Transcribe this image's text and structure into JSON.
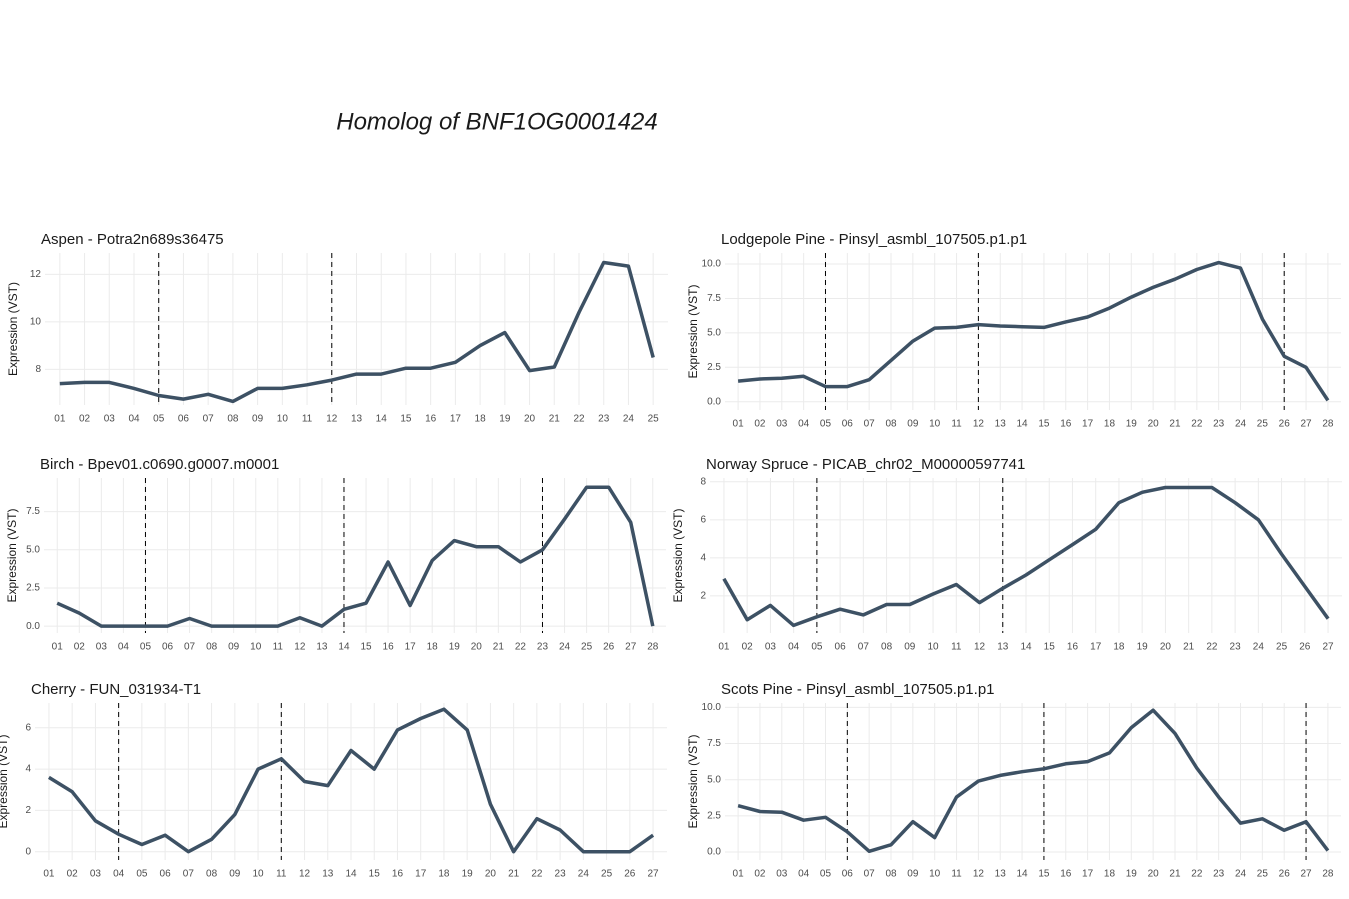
{
  "title": "Homolog of BNF1OG0001424",
  "chart_data": [
    {
      "type": "line",
      "title": "Aspen - Potra2n689s36475",
      "y_label": "Expression (VST)",
      "color": "#3d5164",
      "categories": [
        "01",
        "02",
        "03",
        "04",
        "05",
        "06",
        "07",
        "08",
        "09",
        "10",
        "11",
        "12",
        "13",
        "14",
        "15",
        "16",
        "17",
        "18",
        "19",
        "20",
        "21",
        "22",
        "23",
        "24",
        "25"
      ],
      "values": [
        7.4,
        7.45,
        7.45,
        7.2,
        6.9,
        6.75,
        6.95,
        6.65,
        7.2,
        7.2,
        7.35,
        7.55,
        7.8,
        7.8,
        8.05,
        8.05,
        8.3,
        9.0,
        9.55,
        7.95,
        8.1,
        10.4,
        12.5,
        12.35,
        8.5
      ],
      "vlines": [
        "05",
        "12"
      ],
      "ylim": [
        6.5,
        12.9
      ],
      "yticks": [
        8,
        10,
        12
      ],
      "grid": true
    },
    {
      "type": "line",
      "title": "Lodgepole Pine - Pinsyl_asmbl_107505.p1.p1",
      "y_label": "Expression (VST)",
      "color": "#3d5164",
      "categories": [
        "01",
        "02",
        "03",
        "04",
        "05",
        "06",
        "07",
        "08",
        "09",
        "10",
        "11",
        "12",
        "13",
        "14",
        "15",
        "16",
        "17",
        "18",
        "19",
        "20",
        "21",
        "22",
        "23",
        "24",
        "25",
        "26",
        "27",
        "28"
      ],
      "values": [
        1.5,
        1.65,
        1.7,
        1.85,
        1.1,
        1.1,
        1.6,
        3.0,
        4.4,
        5.35,
        5.4,
        5.6,
        5.5,
        5.45,
        5.4,
        5.8,
        6.15,
        6.8,
        7.6,
        8.3,
        8.9,
        9.6,
        10.1,
        9.7,
        6.0,
        3.3,
        2.5,
        0.1
      ],
      "vlines": [
        "05",
        "12",
        "26"
      ],
      "ylim": [
        -0.6,
        10.8
      ],
      "yticks": [
        {
          "value": 0,
          "label": "0.0"
        },
        2.5,
        {
          "value": 5,
          "label": "5.0"
        },
        7.5,
        {
          "value": 10,
          "label": "10.0"
        }
      ],
      "grid": true
    },
    {
      "type": "line",
      "title": "Birch - Bpev01.c0690.g0007.m0001",
      "y_label": "Expression (VST)",
      "color": "#3d5164",
      "categories": [
        "01",
        "02",
        "03",
        "04",
        "05",
        "06",
        "07",
        "08",
        "09",
        "10",
        "11",
        "12",
        "13",
        "14",
        "15",
        "16",
        "17",
        "18",
        "19",
        "20",
        "21",
        "22",
        "23",
        "24",
        "25",
        "26",
        "27",
        "28"
      ],
      "values": [
        1.5,
        0.85,
        0,
        0,
        0,
        0,
        0.5,
        0,
        0,
        0,
        0,
        0.55,
        0,
        1.1,
        1.5,
        4.2,
        1.35,
        4.3,
        5.6,
        5.2,
        5.2,
        4.2,
        5.0,
        7.0,
        9.1,
        9.1,
        6.8,
        0
      ],
      "vlines": [
        "05",
        "14",
        "23"
      ],
      "ylim": [
        -0.45,
        9.7
      ],
      "yticks": [
        {
          "value": 0,
          "label": "0.0"
        },
        2.5,
        {
          "value": 5,
          "label": "5.0"
        },
        7.5
      ],
      "grid": true
    },
    {
      "type": "line",
      "title": "Norway Spruce - PICAB_chr02_M00000597741",
      "y_label": "Expression (VST)",
      "color": "#3d5164",
      "categories": [
        "01",
        "02",
        "03",
        "04",
        "05",
        "06",
        "07",
        "08",
        "09",
        "10",
        "11",
        "12",
        "13",
        "14",
        "15",
        "16",
        "17",
        "18",
        "19",
        "20",
        "21",
        "22",
        "23",
        "24",
        "25",
        "26",
        "27"
      ],
      "values": [
        2.9,
        0.75,
        1.5,
        0.45,
        0.9,
        1.3,
        1.0,
        1.55,
        1.55,
        2.1,
        2.6,
        1.65,
        2.4,
        3.1,
        3.9,
        4.7,
        5.5,
        6.9,
        7.45,
        7.7,
        7.7,
        7.7,
        6.9,
        6.0,
        4.2,
        2.5,
        0.8
      ],
      "vlines": [
        "05",
        "13"
      ],
      "ylim": [
        0.05,
        8.2
      ],
      "yticks": [
        2,
        4,
        6,
        8
      ],
      "grid": true
    },
    {
      "type": "line",
      "title": "Cherry - FUN_031934-T1",
      "y_label": "Expression (VST)",
      "color": "#3d5164",
      "categories": [
        "01",
        "02",
        "03",
        "04",
        "05",
        "06",
        "07",
        "08",
        "09",
        "10",
        "11",
        "12",
        "13",
        "14",
        "15",
        "16",
        "17",
        "18",
        "19",
        "20",
        "21",
        "22",
        "23",
        "24",
        "25",
        "26",
        "27"
      ],
      "values": [
        3.6,
        2.9,
        1.5,
        0.85,
        0.35,
        0.8,
        0,
        0.6,
        1.8,
        4.0,
        4.5,
        3.4,
        3.2,
        4.9,
        4.0,
        5.9,
        6.45,
        6.9,
        5.9,
        2.3,
        0,
        1.6,
        1.05,
        0,
        0,
        0,
        0.8
      ],
      "vlines": [
        "04",
        "11"
      ],
      "ylim": [
        -0.4,
        7.2
      ],
      "yticks": [
        0,
        2,
        4,
        6
      ],
      "grid": true
    },
    {
      "type": "line",
      "title": "Scots Pine - Pinsyl_asmbl_107505.p1.p1",
      "y_label": "Expression (VST)",
      "color": "#3d5164",
      "categories": [
        "01",
        "02",
        "03",
        "04",
        "05",
        "06",
        "07",
        "08",
        "09",
        "10",
        "11",
        "12",
        "13",
        "14",
        "15",
        "16",
        "17",
        "18",
        "19",
        "20",
        "21",
        "22",
        "23",
        "24",
        "25",
        "26",
        "27",
        "28"
      ],
      "values": [
        3.2,
        2.8,
        2.75,
        2.2,
        2.4,
        1.4,
        0.05,
        0.5,
        2.1,
        1.0,
        3.8,
        4.9,
        5.3,
        5.55,
        5.75,
        6.1,
        6.25,
        6.85,
        8.6,
        9.8,
        8.2,
        5.8,
        3.8,
        2.0,
        2.3,
        1.5,
        2.1,
        0.1
      ],
      "vlines": [
        "06",
        "15",
        "27"
      ],
      "ylim": [
        -0.55,
        10.3
      ],
      "yticks": [
        {
          "value": 0,
          "label": "0.0"
        },
        2.5,
        {
          "value": 5,
          "label": "5.0"
        },
        7.5,
        {
          "value": 10,
          "label": "10.0"
        }
      ],
      "grid": true
    }
  ]
}
